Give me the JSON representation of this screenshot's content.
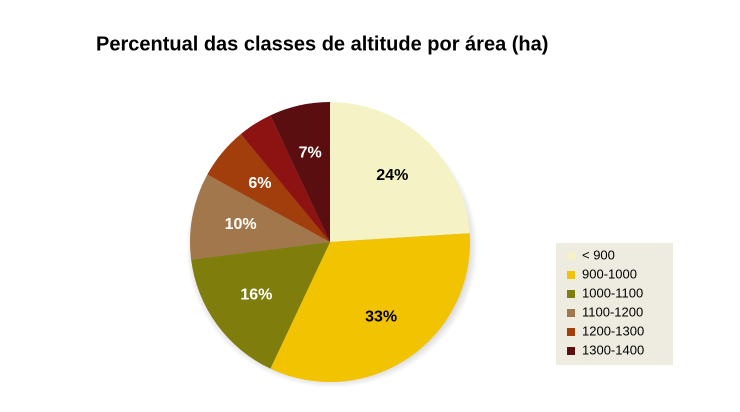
{
  "chart_data": {
    "type": "pie",
    "title": "Percentual das classes de altitude por área (ha)",
    "categories": [
      "< 900",
      "900-1000",
      "1000-1100",
      "1100-1200",
      "1200-1300",
      null,
      "1300-1400"
    ],
    "values": [
      24,
      33,
      16,
      10,
      6,
      4,
      7
    ],
    "value_labels": [
      "24%",
      "33%",
      "16%",
      "10%",
      "6%",
      null,
      "7%"
    ],
    "colors": [
      "#f5f3c6",
      "#f2c300",
      "#7f7d0b",
      "#a2774b",
      "#a23d0c",
      "#8d1212",
      "#5a0e10"
    ],
    "legend": "right"
  }
}
